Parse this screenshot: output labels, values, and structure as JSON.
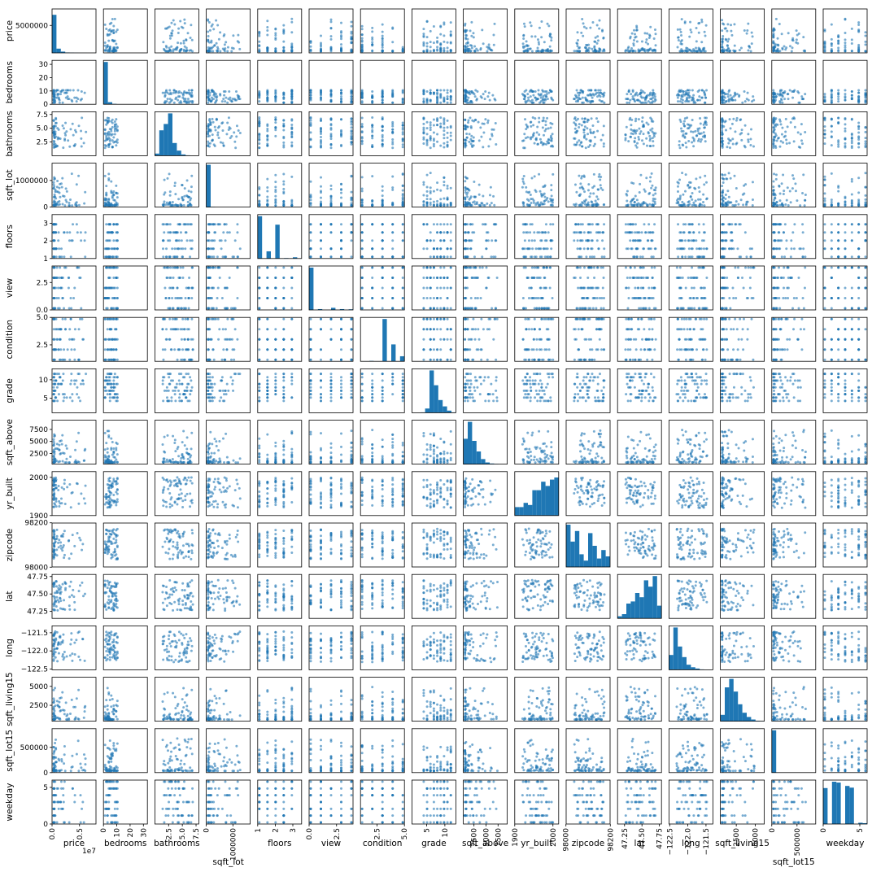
{
  "chart_data": {
    "type": "scatter",
    "kind": "scatter-matrix",
    "diagonal": "histogram",
    "grid": false,
    "marker_color": "#1f77b4",
    "variables": [
      {
        "name": "price",
        "range": [
          0,
          8000000
        ],
        "yticks": [
          "5000000"
        ],
        "ytick_values": [
          5000000
        ],
        "xticks": [
          "0.0",
          "0.5"
        ],
        "xtick_values": [
          0,
          5000000
        ],
        "offset_text": "1e7",
        "hist": [
          0.9,
          0.1,
          0.03,
          0.01,
          0.005,
          0.002,
          0.001,
          0.001,
          0.0,
          0.001
        ]
      },
      {
        "name": "bedrooms",
        "range": [
          0,
          33
        ],
        "yticks": [
          "0",
          "10",
          "20",
          "30"
        ],
        "ytick_values": [
          0,
          10,
          20,
          30
        ],
        "xticks": [
          "0",
          "10",
          "20",
          "30"
        ],
        "xtick_values": [
          0,
          10,
          20,
          30
        ],
        "hist": [
          1.0,
          0.05,
          0.01,
          0.0,
          0.0,
          0.0,
          0.0,
          0.0,
          0.0,
          0.001
        ]
      },
      {
        "name": "bathrooms",
        "range": [
          0,
          8
        ],
        "yticks": [
          "2.5",
          "5.0",
          "7.5"
        ],
        "ytick_values": [
          2.5,
          5.0,
          7.5
        ],
        "xticks": [
          "2.5",
          "5.0",
          "7.5"
        ],
        "xtick_values": [
          2.5,
          5.0,
          7.5
        ],
        "hist": [
          0.05,
          0.6,
          0.75,
          1.0,
          0.3,
          0.12,
          0.03,
          0.01,
          0.005,
          0.002
        ]
      },
      {
        "name": "sqft_lot",
        "range": [
          0,
          1650000
        ],
        "yticks": [
          "0",
          "1000000"
        ],
        "ytick_values": [
          0,
          1000000
        ],
        "xticks": [
          "0",
          "1000000"
        ],
        "xtick_values": [
          0,
          1000000
        ],
        "hist": [
          1.0,
          0.005,
          0.001,
          0.0,
          0.0,
          0.0,
          0.0,
          0.0,
          0.0,
          0.0
        ]
      },
      {
        "name": "floors",
        "range": [
          1,
          3.5
        ],
        "yticks": [
          "1",
          "2",
          "3"
        ],
        "ytick_values": [
          1,
          2,
          3
        ],
        "xticks": [
          "1",
          "2",
          "3"
        ],
        "xtick_values": [
          1,
          2,
          3
        ],
        "hist": [
          1.0,
          0.0,
          0.17,
          0.0,
          0.8,
          0.0,
          0.01,
          0.0,
          0.03,
          0.0
        ]
      },
      {
        "name": "view",
        "range": [
          0,
          4
        ],
        "yticks": [
          "0.0",
          "2.5"
        ],
        "ytick_values": [
          0,
          2.5
        ],
        "xticks": [
          "0.0",
          "2.5"
        ],
        "xtick_values": [
          0,
          2.5
        ],
        "hist": [
          1.0,
          0.0,
          0.02,
          0.0,
          0.0,
          0.05,
          0.0,
          0.02,
          0.0,
          0.015
        ]
      },
      {
        "name": "condition",
        "range": [
          1,
          5
        ],
        "yticks": [
          "2.5",
          "5.0"
        ],
        "ytick_values": [
          2.5,
          5.0
        ],
        "xticks": [
          "2.5",
          "5.0"
        ],
        "xtick_values": [
          2.5,
          5.0
        ],
        "hist": [
          0.002,
          0.0,
          0.01,
          0.0,
          0.0,
          1.0,
          0.0,
          0.4,
          0.0,
          0.12
        ]
      },
      {
        "name": "grade",
        "range": [
          1,
          13
        ],
        "yticks": [
          "5",
          "10"
        ],
        "ytick_values": [
          5,
          10
        ],
        "xticks": [
          "5",
          "10"
        ],
        "xtick_values": [
          5,
          10
        ],
        "hist": [
          0.0,
          0.0,
          0.01,
          0.1,
          1.0,
          0.65,
          0.3,
          0.15,
          0.05,
          0.01
        ]
      },
      {
        "name": "sqft_above",
        "range": [
          290,
          9410
        ],
        "yticks": [
          "2500",
          "5000",
          "7500"
        ],
        "ytick_values": [
          2500,
          5000,
          7500
        ],
        "xticks": [
          "2500",
          "5000",
          "7500"
        ],
        "xtick_values": [
          2500,
          5000,
          7500
        ],
        "hist": [
          0.6,
          1.0,
          0.55,
          0.3,
          0.12,
          0.04,
          0.015,
          0.005,
          0.002,
          0.001
        ]
      },
      {
        "name": "yr_built",
        "range": [
          1900,
          2015
        ],
        "yticks": [
          "1900",
          "2000"
        ],
        "ytick_values": [
          1900,
          2000
        ],
        "xticks": [
          "1900",
          "2000"
        ],
        "xtick_values": [
          1900,
          2000
        ],
        "hist": [
          0.2,
          0.2,
          0.3,
          0.25,
          0.6,
          0.6,
          0.8,
          0.7,
          0.85,
          0.9
        ]
      },
      {
        "name": "zipcode",
        "range": [
          98001,
          98199
        ],
        "yticks": [
          "98000",
          "98200"
        ],
        "ytick_values": [
          98000,
          98200
        ],
        "xticks": [
          "98000",
          "98200"
        ],
        "xtick_values": [
          98000,
          98200
        ],
        "hist": [
          1.0,
          0.6,
          0.85,
          0.3,
          0.15,
          0.8,
          0.5,
          0.2,
          0.4,
          0.25
        ]
      },
      {
        "name": "lat",
        "range": [
          47.15,
          47.78
        ],
        "yticks": [
          "47.25",
          "47.50",
          "47.75"
        ],
        "ytick_values": [
          47.25,
          47.5,
          47.75
        ],
        "xticks": [
          "47.25",
          "47.50",
          "47.75"
        ],
        "xtick_values": [
          47.25,
          47.5,
          47.75
        ],
        "hist": [
          0.05,
          0.1,
          0.35,
          0.4,
          0.6,
          0.5,
          0.9,
          0.75,
          1.0,
          0.3
        ]
      },
      {
        "name": "long",
        "range": [
          -122.52,
          -121.31
        ],
        "yticks": [
          "-121.5",
          "-122.0",
          "-122.5"
        ],
        "ytick_values": [
          -121.5,
          -122.0,
          -122.5
        ],
        "xticks": [
          "-122.5",
          "-122.0",
          "-121.5"
        ],
        "xtick_values": [
          -122.5,
          -122.0,
          -121.5
        ],
        "hist": [
          0.35,
          1.0,
          0.55,
          0.3,
          0.12,
          0.06,
          0.03,
          0.01,
          0.005,
          0.002
        ]
      },
      {
        "name": "sqft_living15",
        "range": [
          400,
          6200
        ],
        "yticks": [
          "2500",
          "5000"
        ],
        "ytick_values": [
          2500,
          5000
        ],
        "xticks": [
          "2500",
          "5000"
        ],
        "xtick_values": [
          2500,
          5000
        ],
        "hist": [
          0.15,
          0.8,
          1.0,
          0.7,
          0.4,
          0.2,
          0.1,
          0.04,
          0.01,
          0.005
        ]
      },
      {
        "name": "sqft_lot15",
        "range": [
          650,
          870000
        ],
        "yticks": [
          "0",
          "500000"
        ],
        "ytick_values": [
          0,
          500000
        ],
        "xticks": [
          "0",
          "500000"
        ],
        "xtick_values": [
          0,
          500000
        ],
        "hist": [
          1.0,
          0.005,
          0.001,
          0.0,
          0.0,
          0.0,
          0.0,
          0.0,
          0.0,
          0.0
        ]
      },
      {
        "name": "weekday",
        "range": [
          0,
          6
        ],
        "yticks": [
          "0",
          "5"
        ],
        "ytick_values": [
          0,
          5
        ],
        "xticks": [
          "0",
          "5"
        ],
        "xtick_values": [
          0,
          5
        ],
        "hist": [
          0.85,
          0.0,
          1.0,
          0.98,
          0.0,
          0.9,
          0.86,
          0.0,
          0.03,
          0.02
        ]
      }
    ]
  }
}
